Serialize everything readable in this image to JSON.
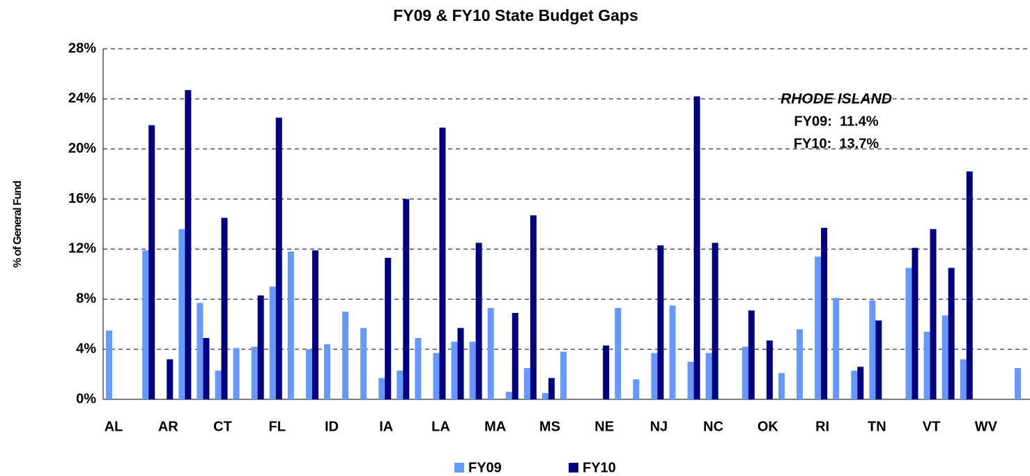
{
  "chart_data": {
    "type": "bar",
    "title": "FY09 & FY10 State Budget Gaps",
    "y_label": "% of General Fund",
    "annotations": [
      "RHODE ISLAND",
      "FY09:  11.4%",
      "FY10:  13.7%"
    ],
    "categories": [
      "AL",
      null,
      null,
      "AR",
      null,
      null,
      "CT",
      null,
      null,
      "FL",
      null,
      null,
      "ID",
      null,
      null,
      "IA",
      null,
      null,
      "LA",
      null,
      null,
      "MA",
      null,
      null,
      "MS",
      null,
      null,
      "NE",
      null,
      null,
      "NJ",
      null,
      null,
      "NC",
      null,
      null,
      "OK",
      null,
      null,
      "RI",
      null,
      null,
      "TN",
      null,
      null,
      "VT",
      null,
      null,
      "WV",
      null,
      null
    ],
    "series": [
      {
        "name": "FY09",
        "color": "#6699ff",
        "values": [
          5.5,
          null,
          11.9,
          null,
          13.6,
          7.7,
          2.3,
          4.1,
          4.2,
          9.0,
          11.8,
          4.0,
          4.4,
          7.0,
          5.7,
          1.7,
          2.3,
          4.9,
          3.7,
          4.6,
          4.6,
          7.3,
          0.6,
          2.5,
          0.5,
          3.8,
          null,
          null,
          7.3,
          1.6,
          3.7,
          7.5,
          3.0,
          3.7,
          null,
          4.2,
          null,
          2.1,
          5.6,
          11.4,
          8.1,
          2.3,
          7.9,
          null,
          10.5,
          5.4,
          6.7,
          3.2,
          null,
          null,
          2.5
        ]
      },
      {
        "name": "FY10",
        "color": "#000080",
        "values": [
          null,
          null,
          21.9,
          3.2,
          24.7,
          4.9,
          14.5,
          null,
          8.3,
          22.5,
          null,
          11.9,
          null,
          null,
          null,
          11.3,
          16.0,
          null,
          21.7,
          5.7,
          12.5,
          null,
          6.9,
          14.7,
          1.7,
          null,
          null,
          4.3,
          null,
          null,
          12.3,
          null,
          24.2,
          12.5,
          null,
          7.1,
          4.7,
          null,
          null,
          13.7,
          null,
          2.6,
          6.3,
          null,
          12.1,
          13.6,
          10.5,
          18.2,
          null,
          null,
          null
        ]
      }
    ],
    "ylim": [
      0,
      28
    ],
    "yticks": [
      {
        "value": 0,
        "label": "0%"
      },
      {
        "value": 4,
        "label": "4%"
      },
      {
        "value": 8,
        "label": "8%"
      },
      {
        "value": 12,
        "label": "12%"
      },
      {
        "value": 16,
        "label": "16%"
      },
      {
        "value": 20,
        "label": "20%"
      },
      {
        "value": 24,
        "label": "24%"
      },
      {
        "value": 28,
        "label": "28%"
      }
    ],
    "grid": true,
    "legend": "bottom"
  }
}
